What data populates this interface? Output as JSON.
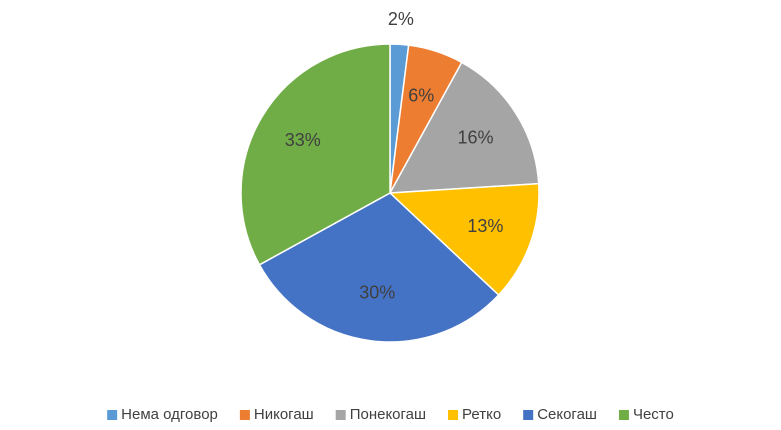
{
  "chart_data": {
    "type": "pie",
    "categories": [
      "Нема одговор",
      "Никогаш",
      "Понекогаш",
      "Ретко",
      "Секогаш",
      "Често"
    ],
    "values": [
      2,
      6,
      16,
      13,
      30,
      33
    ],
    "value_labels": [
      "2%",
      "6%",
      "16%",
      "13%",
      "30%",
      "33%"
    ],
    "colors": [
      "#5b9bd5",
      "#ed7d31",
      "#a5a5a5",
      "#ffc000",
      "#4472c4",
      "#70ad47"
    ],
    "legend": "bottom"
  }
}
